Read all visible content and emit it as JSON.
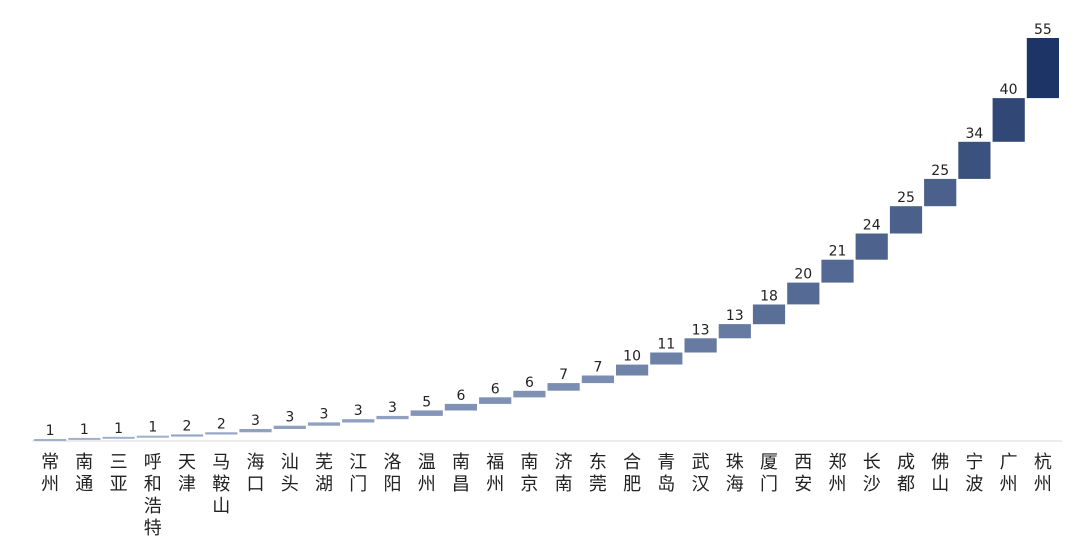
{
  "chart_data": {
    "type": "bar",
    "categories": [
      "常州",
      "南通",
      "三亚",
      "呼和浩特",
      "天津",
      "马鞍山",
      "海口",
      "汕头",
      "芜湖",
      "江门",
      "洛阳",
      "温州",
      "南昌",
      "福州",
      "南京",
      "济南",
      "东莞",
      "合肥",
      "青岛",
      "武汉",
      "珠海",
      "厦门",
      "西安",
      "郑州",
      "长沙",
      "成都",
      "佛山",
      "宁波",
      "广州",
      "杭州"
    ],
    "values": [
      1,
      1,
      1,
      1,
      2,
      2,
      3,
      3,
      3,
      3,
      3,
      5,
      6,
      6,
      6,
      7,
      7,
      10,
      11,
      13,
      13,
      18,
      20,
      21,
      24,
      25,
      25,
      34,
      40,
      55
    ],
    "colors": {
      "light": "#b9c7e3",
      "dark": "#1c3566"
    },
    "title": "",
    "xlabel": "",
    "ylabel": "",
    "ylim": [
      0,
      58
    ],
    "grid": false,
    "legend": "none"
  }
}
